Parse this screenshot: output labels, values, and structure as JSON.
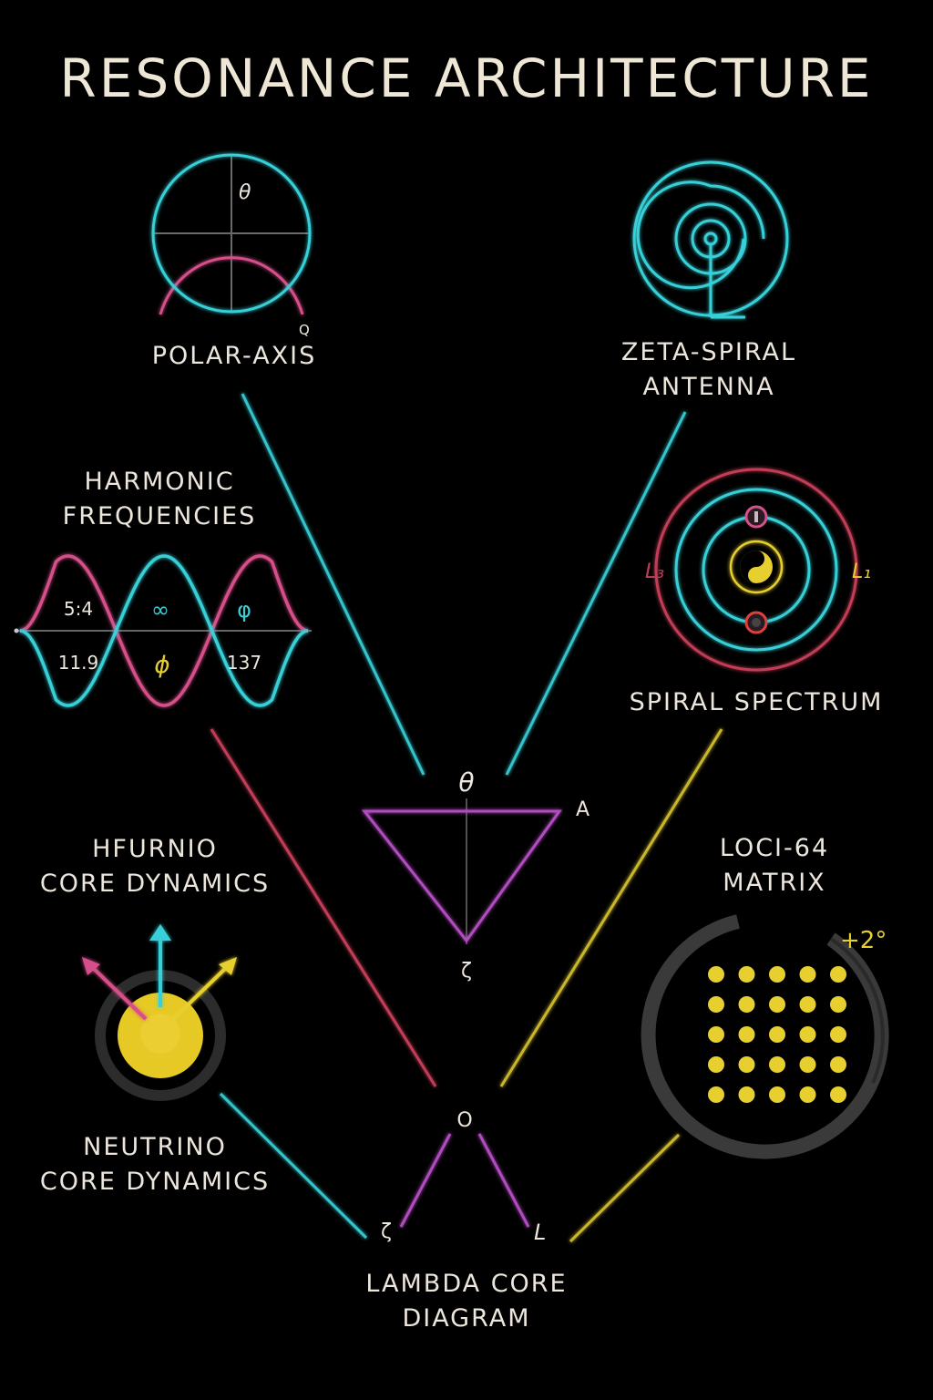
{
  "title": "RESONANCE ARCHITECTURE",
  "colors": {
    "background": "#000000",
    "cyan": "#38d0d8",
    "magenta": "#d6508a",
    "purple": "#b14cc0",
    "yellow": "#e6cf2e",
    "red": "#c23e57",
    "text": "#ece6dc"
  },
  "nodes": {
    "polar_axis": {
      "label": "POLAR-AXIS",
      "theta": "θ",
      "q": "Q"
    },
    "zeta_spiral": {
      "label_line1": "ZETA-SPIRAL",
      "label_line2": "ANTENNA"
    },
    "harmonic": {
      "label_line1": "HARMONIC",
      "label_line2": "FREQUENCIES",
      "values": [
        "5:4",
        "∞",
        "φ",
        "11.9",
        "ϕ",
        "137"
      ]
    },
    "spiral_spectrum": {
      "label": "SPIRAL SPECTRUM",
      "left_tag": "L₃",
      "right_tag": "L₁"
    },
    "central_triangle": {
      "top": "θ",
      "right": "A",
      "bottom": "ζ"
    },
    "hfurnio": {
      "label_line1": "HFURNIO",
      "label_line2": "CORE DYNAMICS"
    },
    "loci": {
      "label_line1": "LOCI-64",
      "label_line2": "MATRIX",
      "badge": "+2°"
    },
    "neutrino": {
      "label_line1": "NEUTRINO",
      "label_line2": "CORE DYNAMICS"
    },
    "lambda_core": {
      "top": "O",
      "left": "ζ",
      "right": "L",
      "label_line1": "LAMBDA CORE",
      "label_line2": "DIAGRAM"
    }
  }
}
